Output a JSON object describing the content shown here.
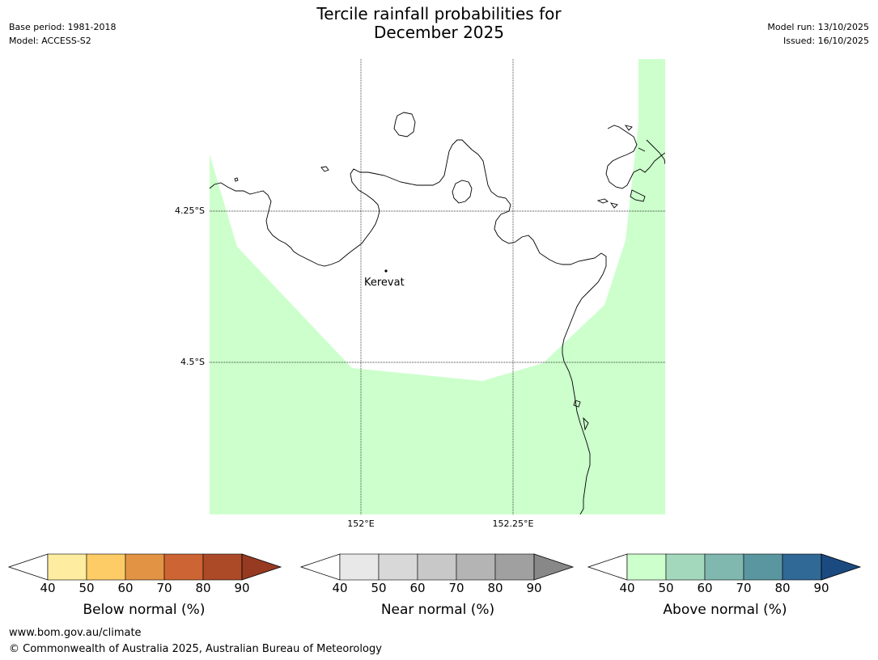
{
  "title_line1": "Tercile rainfall probabilities for",
  "title_line2": "December 2025",
  "meta_left": {
    "base_period": "Base period: 1981-2018",
    "model": "Model: ACCESS-S2"
  },
  "meta_right": {
    "model_run": "Model run: 13/10/2025",
    "issued": "Issued: 16/10/2025"
  },
  "map": {
    "lat_labels": [
      "4.25°S",
      "4.5°S"
    ],
    "lon_labels": [
      "152°E",
      "152.25°E"
    ],
    "town": "Kerevat",
    "fill_color": "#ccffcc",
    "coastline_color": "#000000"
  },
  "colorbars": [
    {
      "title": "Below normal (%)",
      "ticks": [
        "40",
        "50",
        "60",
        "70",
        "80",
        "90"
      ],
      "colors": [
        "#ffffff",
        "#feeca0",
        "#fecc66",
        "#e29444",
        "#cc6433",
        "#ac4a28",
        "#963a22"
      ]
    },
    {
      "title": "Near normal (%)",
      "ticks": [
        "40",
        "50",
        "60",
        "70",
        "80",
        "90"
      ],
      "colors": [
        "#ffffff",
        "#e8e8e8",
        "#d8d8d8",
        "#c8c8c8",
        "#b4b4b4",
        "#a0a0a0",
        "#888888"
      ]
    },
    {
      "title": "Above normal (%)",
      "ticks": [
        "40",
        "50",
        "60",
        "70",
        "80",
        "90"
      ],
      "colors": [
        "#ffffff",
        "#ccffcc",
        "#a4d8bc",
        "#80b8b0",
        "#5a96a0",
        "#306896",
        "#1a4a80"
      ]
    }
  ],
  "footer": {
    "url": "www.bom.gov.au/climate",
    "copyright": "© Commonwealth of Australia 2025, Australian Bureau of Meteorology"
  }
}
